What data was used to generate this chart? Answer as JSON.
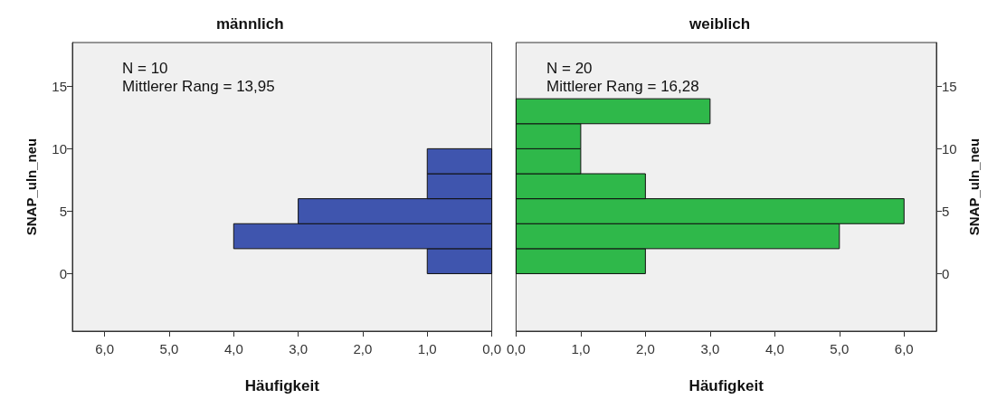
{
  "chart_data": [
    {
      "type": "histogram",
      "orientation": "horizontal",
      "title": "männlich",
      "xlabel": "Häufigkeit",
      "ylabel": "SNAP_uln_neu",
      "color": "#3f55ae",
      "bins": [
        0,
        2,
        4,
        6,
        8,
        10
      ],
      "values": [
        1,
        4,
        3,
        1,
        1
      ],
      "xlim": [
        6.5,
        0
      ],
      "xticks": [
        {
          "value": 6,
          "label": "6,0"
        },
        {
          "value": 5,
          "label": "5,0"
        },
        {
          "value": 4,
          "label": "4,0"
        },
        {
          "value": 3,
          "label": "3,0"
        },
        {
          "value": 2,
          "label": "2,0"
        },
        {
          "value": 1,
          "label": "1,0"
        },
        {
          "value": 0,
          "label": "0,0"
        }
      ],
      "ylim": [
        -4.6,
        18.5
      ],
      "yticks": [
        0,
        5,
        10,
        15
      ],
      "grid": false,
      "annotations": [
        "N = 10",
        "Mittlerer Rang = 13,95"
      ]
    },
    {
      "type": "histogram",
      "orientation": "horizontal",
      "title": "weiblich",
      "xlabel": "Häufigkeit",
      "ylabel": "SNAP_uln_neu",
      "color": "#2fb84a",
      "bins": [
        0,
        2,
        4,
        6,
        8,
        10,
        12,
        14
      ],
      "values": [
        2,
        5,
        6,
        2,
        1,
        1,
        3
      ],
      "xlim": [
        0,
        6.5
      ],
      "xticks": [
        {
          "value": 0,
          "label": "0,0"
        },
        {
          "value": 1,
          "label": "1,0"
        },
        {
          "value": 2,
          "label": "2,0"
        },
        {
          "value": 3,
          "label": "3,0"
        },
        {
          "value": 4,
          "label": "4,0"
        },
        {
          "value": 5,
          "label": "5,0"
        },
        {
          "value": 6,
          "label": "6,0"
        }
      ],
      "ylim": [
        -4.6,
        18.5
      ],
      "yticks": [
        0,
        5,
        10,
        15
      ],
      "grid": false,
      "annotations": [
        "N = 20",
        "Mittlerer Rang = 16,28"
      ]
    }
  ]
}
